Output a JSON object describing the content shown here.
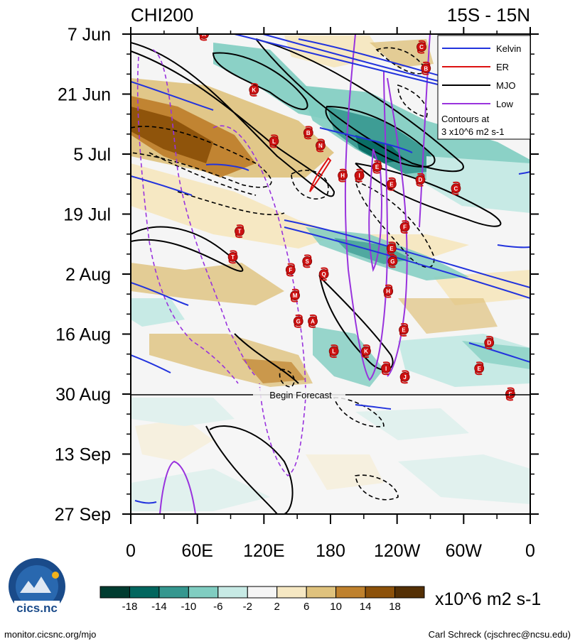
{
  "chart_data": {
    "type": "heatmap",
    "title_left": "CHI200",
    "title_right": "15S - 15N",
    "x_tick_labels": [
      "0",
      "60E",
      "120E",
      "180",
      "120W",
      "60W",
      "0"
    ],
    "x_ticks_deg": [
      0,
      60,
      120,
      180,
      240,
      300,
      360
    ],
    "xlim_deg": [
      0,
      360
    ],
    "y_tick_labels": [
      "7 Jun",
      "21 Jun",
      "5 Jul",
      "19 Jul",
      "2 Aug",
      "16 Aug",
      "30 Aug",
      "13 Sep",
      "27 Sep"
    ],
    "y_ticks_day": [
      0,
      14,
      28,
      42,
      56,
      70,
      84,
      98,
      112
    ],
    "ylim_day": [
      0,
      112
    ],
    "forecast_start_day": 84,
    "forecast_label": "Begin Forecast",
    "colorbar": {
      "unit_label": "x10^6 m2 s-1",
      "tick_labels": [
        "-18",
        "-14",
        "-10",
        "-6",
        "-2",
        "2",
        "6",
        "10",
        "14",
        "18"
      ],
      "colors": [
        "#003c30",
        "#01665e",
        "#35978f",
        "#80cdc1",
        "#c7eae5",
        "#f5f5f5",
        "#f6e8c3",
        "#dfc27d",
        "#bf812d",
        "#8c510a",
        "#543005"
      ]
    },
    "legend": {
      "entries": [
        {
          "name": "Kelvin",
          "color": "#2233dd"
        },
        {
          "name": "ER",
          "color": "#dd1111"
        },
        {
          "name": "MJO",
          "color": "#000000"
        },
        {
          "name": "Low",
          "color": "#9933dd"
        }
      ],
      "note_line1": "Contours at",
      "note_line2": "3 x10^6 m2 s-1",
      "placement": "top-right"
    },
    "storms": [
      {
        "id": "A",
        "lon": 66,
        "day": 0
      },
      {
        "id": "C",
        "lon": 262,
        "day": 3
      },
      {
        "id": "B",
        "lon": 266,
        "day": 8
      },
      {
        "id": "K",
        "lon": 111,
        "day": 13
      },
      {
        "id": "L",
        "lon": 129,
        "day": 25
      },
      {
        "id": "B",
        "lon": 160,
        "day": 23
      },
      {
        "id": "N",
        "lon": 171,
        "day": 26
      },
      {
        "id": "E",
        "lon": 222,
        "day": 31
      },
      {
        "id": "H",
        "lon": 191,
        "day": 33
      },
      {
        "id": "I",
        "lon": 206,
        "day": 33
      },
      {
        "id": "D",
        "lon": 261,
        "day": 34
      },
      {
        "id": "E",
        "lon": 235,
        "day": 35
      },
      {
        "id": "C",
        "lon": 293,
        "day": 36
      },
      {
        "id": "F",
        "lon": 247,
        "day": 45
      },
      {
        "id": "T",
        "lon": 98,
        "day": 46
      },
      {
        "id": "E",
        "lon": 235,
        "day": 50
      },
      {
        "id": "T",
        "lon": 92,
        "day": 52
      },
      {
        "id": "S",
        "lon": 159,
        "day": 53
      },
      {
        "id": "G",
        "lon": 236,
        "day": 53
      },
      {
        "id": "F",
        "lon": 144,
        "day": 55
      },
      {
        "id": "Q",
        "lon": 174,
        "day": 56
      },
      {
        "id": "H",
        "lon": 232,
        "day": 60
      },
      {
        "id": "M",
        "lon": 148,
        "day": 61
      },
      {
        "id": "G",
        "lon": 151,
        "day": 67
      },
      {
        "id": "A",
        "lon": 164,
        "day": 67
      },
      {
        "id": "E",
        "lon": 246,
        "day": 69
      },
      {
        "id": "D",
        "lon": 323,
        "day": 72
      },
      {
        "id": "L",
        "lon": 183,
        "day": 74
      },
      {
        "id": "K",
        "lon": 212,
        "day": 74
      },
      {
        "id": "E",
        "lon": 314,
        "day": 78
      },
      {
        "id": "I",
        "lon": 230,
        "day": 78
      },
      {
        "id": "J",
        "lon": 247,
        "day": 80
      },
      {
        "id": "F",
        "lon": 342,
        "day": 84
      }
    ]
  },
  "logo_text": "cics.nc",
  "footer": {
    "left": "monitor.cicsnc.org/mjo",
    "right": "Carl Schreck (cjschrec@ncsu.edu)"
  }
}
